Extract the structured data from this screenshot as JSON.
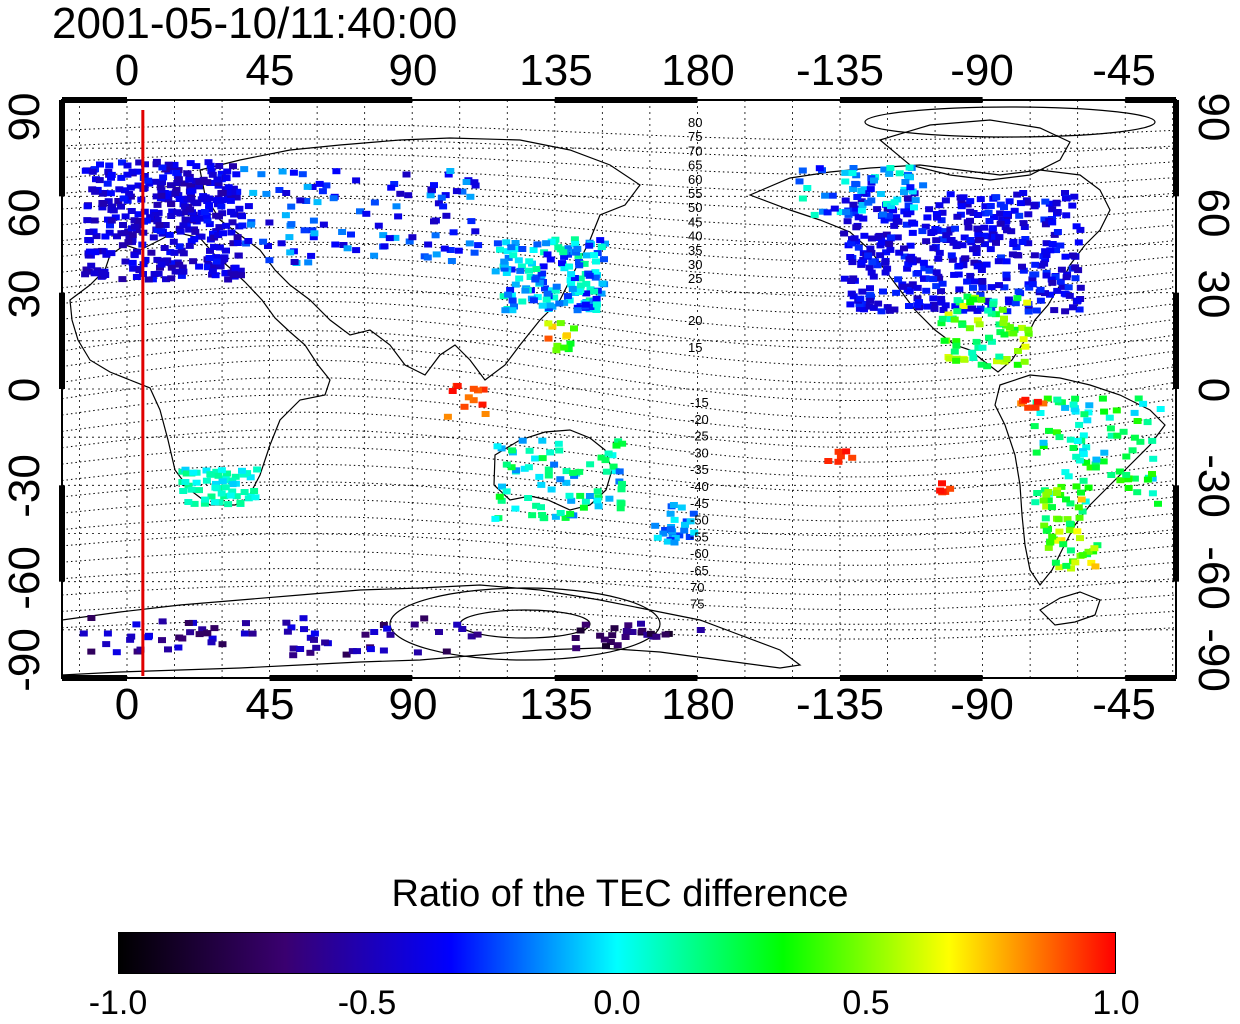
{
  "title": "2001-05-10/11:40:00",
  "map": {
    "lon_ticks": [
      "0",
      "45",
      "90",
      "135",
      "180",
      "-135",
      "-90",
      "-45"
    ],
    "lat_ticks": [
      "90",
      "60",
      "30",
      "0",
      "-30",
      "-60",
      "-90"
    ],
    "contour_labels_north": [
      "80",
      "75",
      "70",
      "65",
      "60",
      "55",
      "50",
      "45",
      "40",
      "35",
      "30",
      "25",
      "20",
      "15"
    ],
    "contour_labels_south": [
      "-15",
      "-20",
      "-25",
      "-30",
      "-35",
      "-40",
      "-45",
      "-50",
      "-55",
      "-60",
      "-65",
      "70",
      "75"
    ],
    "marker_line_lon": 5,
    "colors": {
      "frame": "#000000",
      "marker": "#e00000",
      "grid": "#000000"
    }
  },
  "colorbar": {
    "title": "Ratio of the TEC difference",
    "ticks": [
      "-1.0",
      "-0.5",
      "0.0",
      "0.5",
      "1.0"
    ],
    "range": [
      -1.0,
      1.0
    ],
    "stops": [
      "#000000",
      "#3a0070",
      "#0000ff",
      "#00ffff",
      "#00ff00",
      "#ffff00",
      "#ff0000"
    ]
  }
}
